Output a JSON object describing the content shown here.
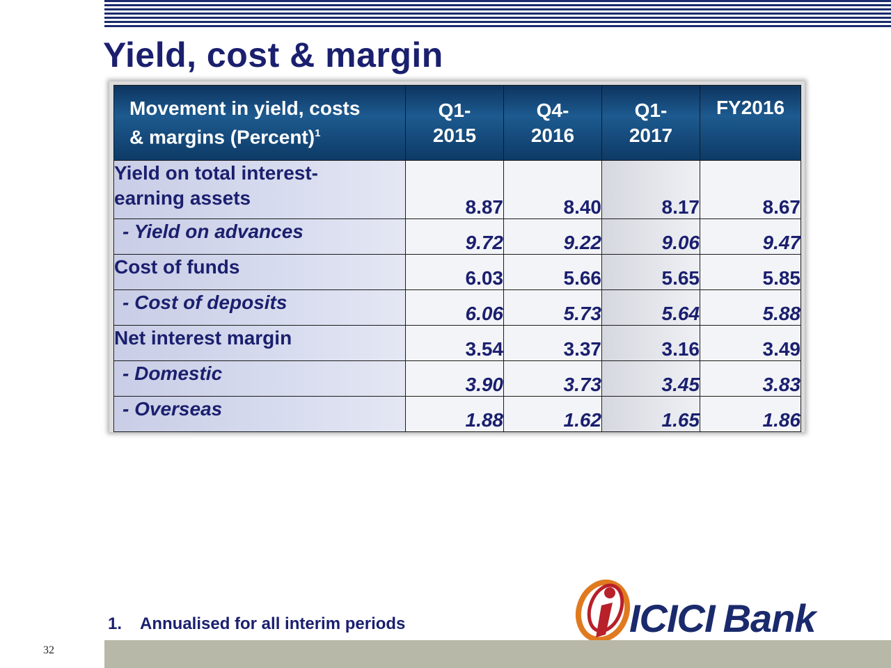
{
  "slide": {
    "title": "Yield, cost & margin",
    "page_number": "32",
    "footnote": {
      "number": "1.",
      "text": "Annualised for all interim periods"
    },
    "logo": {
      "name": "ICICI",
      "suffix": "Bank"
    }
  },
  "table": {
    "header": {
      "label_line1": "Movement in yield, costs",
      "label_line2": "& margins (Percent)",
      "label_sup": "1",
      "columns": [
        {
          "line1": "Q1-",
          "line2": "2015"
        },
        {
          "line1": "Q4-",
          "line2": "2016"
        },
        {
          "line1": "Q1-",
          "line2": "2017"
        },
        {
          "line1": "FY2016",
          "line2": ""
        }
      ]
    },
    "rows": [
      {
        "label_line1": "Yield on total interest-",
        "label_line2": "earning assets",
        "values": [
          "8.87",
          "8.40",
          "8.17",
          "8.67"
        ]
      },
      {
        "label": "- Yield on advances",
        "values": [
          "9.72",
          "9.22",
          "9.06",
          "9.47"
        ]
      },
      {
        "label": "Cost of funds",
        "values": [
          "6.03",
          "5.66",
          "5.65",
          "5.85"
        ]
      },
      {
        "label": "- Cost of deposits",
        "values": [
          "6.06",
          "5.73",
          "5.64",
          "5.88"
        ]
      },
      {
        "label": "Net interest margin",
        "values": [
          "3.54",
          "3.37",
          "3.16",
          "3.49"
        ]
      },
      {
        "label": "- Domestic",
        "values": [
          "3.90",
          "3.73",
          "3.45",
          "3.83"
        ]
      },
      {
        "label": "- Overseas",
        "values": [
          "1.88",
          "1.62",
          "1.65",
          "1.86"
        ]
      }
    ]
  },
  "colors": {
    "title": "#1a1f6e",
    "header_bg": "#0e3561",
    "label_bg": "#c9cde6",
    "footer_bar": "#b8b8a8",
    "logo_orange": "#e07a1f",
    "logo_red": "#b8202a"
  }
}
